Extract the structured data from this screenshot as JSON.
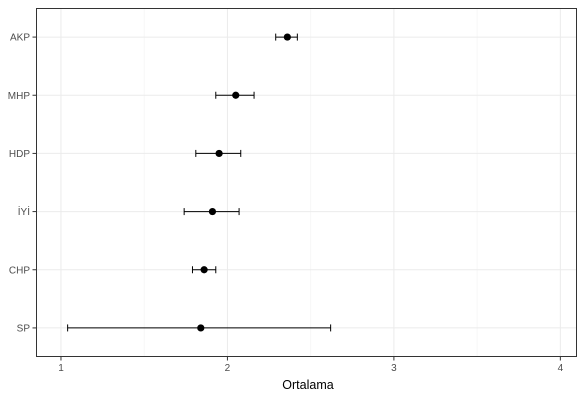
{
  "chart_data": {
    "type": "scatter",
    "title": "",
    "xlabel": "Ortalama",
    "ylabel": "",
    "xlim": [
      0.85,
      4.1
    ],
    "x_ticks": [
      1,
      2,
      3,
      4
    ],
    "x_tick_labels": [
      "1",
      "2",
      "3",
      "4"
    ],
    "x_minor_ticks": [
      1.5,
      2.5,
      3.5
    ],
    "categories": [
      "AKP",
      "MHP",
      "HDP",
      "İYİ",
      "CHP",
      "SP"
    ],
    "points": [
      {
        "category": "AKP",
        "mean": 2.36,
        "lower": 2.29,
        "upper": 2.42
      },
      {
        "category": "MHP",
        "mean": 2.05,
        "lower": 1.93,
        "upper": 2.16
      },
      {
        "category": "HDP",
        "mean": 1.95,
        "lower": 1.81,
        "upper": 2.08
      },
      {
        "category": "İYİ",
        "mean": 1.91,
        "lower": 1.74,
        "upper": 2.07
      },
      {
        "category": "CHP",
        "mean": 1.86,
        "lower": 1.79,
        "upper": 1.93
      },
      {
        "category": "SP",
        "mean": 1.84,
        "lower": 1.04,
        "upper": 2.62
      }
    ],
    "grid": true,
    "legend": "none",
    "colors": {
      "point": "#000000",
      "errorbar": "#000000",
      "grid_major": "#ebebeb",
      "grid_minor": "#f5f5f5",
      "panel_border": "#333333",
      "tick_label": "#4d4d4d"
    }
  }
}
